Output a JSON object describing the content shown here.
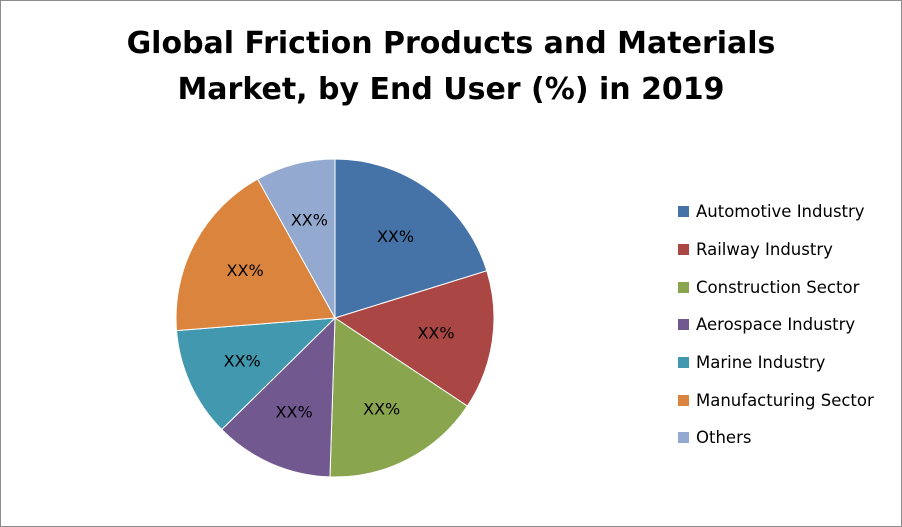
{
  "chart_data": {
    "type": "pie",
    "title_lines": [
      "Global Friction Products and Materials",
      "Market, by End User (%) in 2019"
    ],
    "categories": [
      "Automotive Industry",
      "Railway Industry",
      "Construction Sector",
      "Aerospace Industry",
      "Marine Industry",
      "Manufacturing Sector",
      "Others"
    ],
    "values": [
      20,
      14,
      16,
      12,
      11,
      18,
      8
    ],
    "data_labels": [
      "XX%",
      "XX%",
      "XX%",
      "XX%",
      "XX%",
      "XX%",
      "XX%"
    ],
    "colors": [
      "#4572a7",
      "#aa4643",
      "#89a54e",
      "#71588f",
      "#4198af",
      "#db843d",
      "#93a9cf"
    ],
    "legend_position": "right"
  }
}
